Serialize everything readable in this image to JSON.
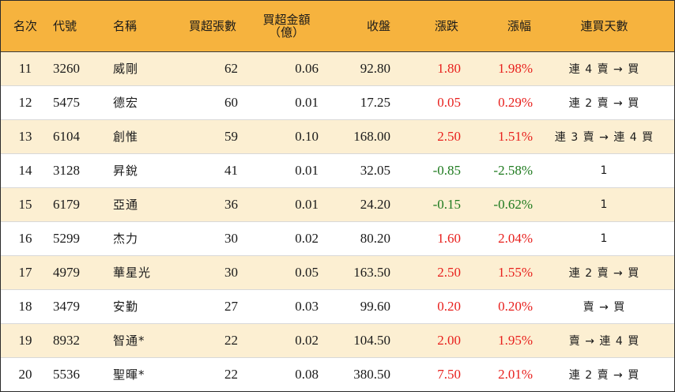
{
  "headers": {
    "rank": "名次",
    "code": "代號",
    "name": "名稱",
    "net_buy_lots": "買超張數",
    "net_buy_amount_line1": "買超金額",
    "net_buy_amount_line2": "（億）",
    "close": "收盤",
    "change": "漲跌",
    "change_pct": "漲幅",
    "consecutive_days": "連買天數"
  },
  "rows": [
    {
      "rank": "11",
      "code": "3260",
      "name": "威剛",
      "lots": "62",
      "amount": "0.06",
      "close": "92.80",
      "change": "1.80",
      "pct": "1.98%",
      "days": "連 4 賣 → 買",
      "dir": "up"
    },
    {
      "rank": "12",
      "code": "5475",
      "name": "德宏",
      "lots": "60",
      "amount": "0.01",
      "close": "17.25",
      "change": "0.05",
      "pct": "0.29%",
      "days": "連 2 賣 → 買",
      "dir": "up"
    },
    {
      "rank": "13",
      "code": "6104",
      "name": "創惟",
      "lots": "59",
      "amount": "0.10",
      "close": "168.00",
      "change": "2.50",
      "pct": "1.51%",
      "days": "連 3 賣 → 連 4 買",
      "dir": "up"
    },
    {
      "rank": "14",
      "code": "3128",
      "name": "昇銳",
      "lots": "41",
      "amount": "0.01",
      "close": "32.05",
      "change": "-0.85",
      "pct": "-2.58%",
      "days": "1",
      "dir": "down"
    },
    {
      "rank": "15",
      "code": "6179",
      "name": "亞通",
      "lots": "36",
      "amount": "0.01",
      "close": "24.20",
      "change": "-0.15",
      "pct": "-0.62%",
      "days": "1",
      "dir": "down"
    },
    {
      "rank": "16",
      "code": "5299",
      "name": "杰力",
      "lots": "30",
      "amount": "0.02",
      "close": "80.20",
      "change": "1.60",
      "pct": "2.04%",
      "days": "1",
      "dir": "up"
    },
    {
      "rank": "17",
      "code": "4979",
      "name": "華星光",
      "lots": "30",
      "amount": "0.05",
      "close": "163.50",
      "change": "2.50",
      "pct": "1.55%",
      "days": "連 2 賣 → 買",
      "dir": "up"
    },
    {
      "rank": "18",
      "code": "3479",
      "name": "安勤",
      "lots": "27",
      "amount": "0.03",
      "close": "99.60",
      "change": "0.20",
      "pct": "0.20%",
      "days": "賣 → 買",
      "dir": "up"
    },
    {
      "rank": "19",
      "code": "8932",
      "name": "智通*",
      "lots": "22",
      "amount": "0.02",
      "close": "104.50",
      "change": "2.00",
      "pct": "1.95%",
      "days": "賣 → 連 4 買",
      "dir": "up"
    },
    {
      "rank": "20",
      "code": "5536",
      "name": "聖暉*",
      "lots": "22",
      "amount": "0.08",
      "close": "380.50",
      "change": "7.50",
      "pct": "2.01%",
      "days": "連 2 賣 → 買",
      "dir": "up"
    }
  ],
  "colors": {
    "header_bg": "#f6b33e",
    "stripe_bg": "#fcefd2",
    "up": "#e8201d",
    "down": "#1e7a1e"
  }
}
